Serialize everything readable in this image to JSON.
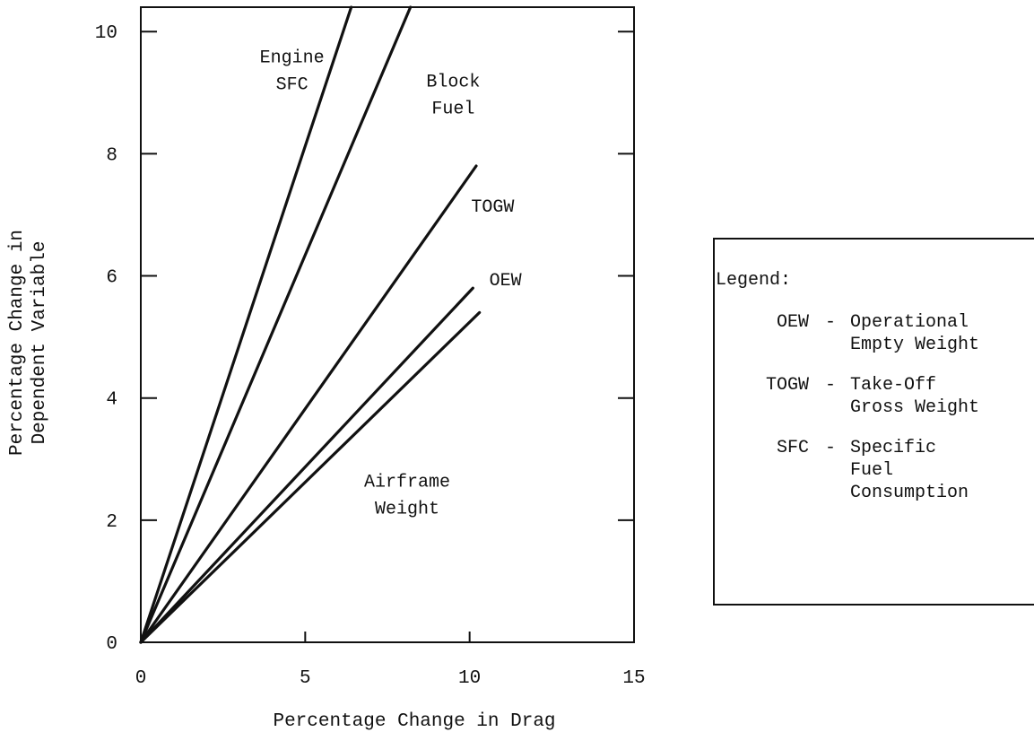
{
  "chart_data": {
    "type": "line",
    "xlabel": "Percentage Change in Drag",
    "ylabel": [
      "Percentage Change in",
      "Dependent Variable"
    ],
    "xlim": [
      0,
      15
    ],
    "ylim": [
      0,
      10.4
    ],
    "x_ticks": [
      0,
      5,
      10,
      15
    ],
    "y_ticks": [
      0,
      2,
      4,
      6,
      8,
      10
    ],
    "grid": false,
    "series": [
      {
        "name": "Engine SFC",
        "label_lines": [
          "Engine",
          "SFC"
        ],
        "x": [
          0,
          6.4
        ],
        "y": [
          0,
          10.4
        ]
      },
      {
        "name": "Block Fuel",
        "label_lines": [
          "Block",
          "Fuel"
        ],
        "x": [
          0,
          8.2
        ],
        "y": [
          0,
          10.4
        ]
      },
      {
        "name": "TOGW",
        "label_lines": [
          "TOGW"
        ],
        "x": [
          0,
          10.2
        ],
        "y": [
          0,
          7.8
        ]
      },
      {
        "name": "OEW",
        "label_lines": [
          "OEW"
        ],
        "x": [
          0,
          10.1
        ],
        "y": [
          0,
          5.8
        ]
      },
      {
        "name": "Airframe Weight",
        "label_lines": [
          "Airframe",
          "Weight"
        ],
        "x": [
          0,
          10.3
        ],
        "y": [
          0,
          5.4
        ]
      }
    ],
    "legend": {
      "placement": "right",
      "title": "Legend:",
      "entries": [
        {
          "abbr": "OEW",
          "sep": "-",
          "lines": [
            "Operational",
            "Empty Weight"
          ]
        },
        {
          "abbr": "TOGW",
          "sep": "-",
          "lines": [
            "Take-Off",
            "Gross Weight"
          ]
        },
        {
          "abbr": "SFC",
          "sep": "-",
          "lines": [
            "Specific",
            "Fuel",
            "Consumption"
          ]
        }
      ]
    }
  }
}
